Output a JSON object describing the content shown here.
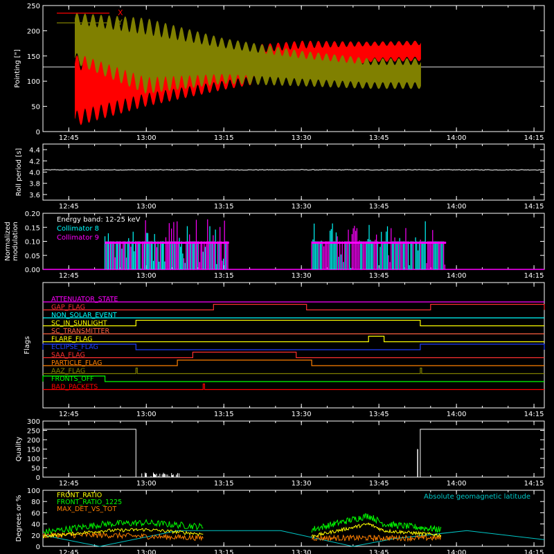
{
  "x_time_ticks": [
    "12:45",
    "13:00",
    "13:15",
    "13:30",
    "13:45",
    "14:00",
    "14:15"
  ],
  "colors": {
    "background": "#000000",
    "axes": "#ffffff",
    "x": "#ff0000",
    "y": "#808000",
    "collimator8": "#00ffff",
    "collimator9": "#ff00ff",
    "quality": "#ffffff",
    "front_ratio": "#ffff00",
    "front_ratio_1225": "#00ff00",
    "max_det_vs_tot": "#ff8000",
    "geomag": "#00c8c8"
  },
  "chart_data": [
    {
      "id": "pointing",
      "type": "line",
      "ylabel": "Pointing [\"]",
      "ylim": [
        0,
        250
      ],
      "yticks": [
        "0",
        "50",
        "100",
        "150",
        "200",
        "250"
      ],
      "legend": [
        {
          "name": "X",
          "color": "#ff0000"
        },
        {
          "name": "Y",
          "color": "#808000"
        }
      ],
      "legend_position": "top-left",
      "series": [
        {
          "name": "X",
          "color": "#ff0000",
          "center": 128,
          "envelope": [
            [
              12.77,
              80,
              70
            ],
            [
              13.0,
              110,
              60
            ],
            [
              13.25,
              125,
              42
            ],
            [
              13.5,
              145,
              35
            ],
            [
              13.72,
              158,
              20
            ],
            [
              13.88,
              160,
              20
            ]
          ]
        },
        {
          "name": "Y",
          "color": "#808000",
          "center": 128,
          "envelope": [
            [
              12.77,
              185,
              50
            ],
            [
              13.0,
              150,
              75
            ],
            [
              13.25,
              140,
              45
            ],
            [
              13.5,
              125,
              35
            ],
            [
              13.72,
              115,
              30
            ],
            [
              13.88,
              115,
              30
            ]
          ]
        }
      ],
      "baseline": 128,
      "active_range": [
        "12:46",
        "13:53"
      ]
    },
    {
      "id": "roll",
      "type": "line",
      "ylabel": "Roll period [s]",
      "ylim": [
        3.5,
        4.5
      ],
      "yticks": [
        "3.6",
        "3.8",
        "4.0",
        "4.2",
        "4.4"
      ],
      "value": 4.04
    },
    {
      "id": "modulation",
      "type": "bar",
      "ylabel": "Normalized modulation",
      "ylim": [
        0,
        0.2
      ],
      "yticks": [
        "0.00",
        "0.05",
        "0.10",
        "0.15",
        "0.20"
      ],
      "annotations": [
        "Energy band: 12-25 keV"
      ],
      "legend": [
        {
          "name": "Collimator 8",
          "color": "#00ffff"
        },
        {
          "name": "Collimator 9",
          "color": "#ff00ff"
        }
      ],
      "legend_position": "top-left",
      "active_ranges": [
        [
          "12:52",
          "13:16"
        ],
        [
          "13:32",
          "13:58"
        ]
      ],
      "typical_value": 0.1,
      "max_value": 0.2
    },
    {
      "id": "flags",
      "type": "line",
      "ylabel": "Flags",
      "flags": [
        {
          "name": "ATTENUATOR_STATE",
          "color": "#ff00ff",
          "high": []
        },
        {
          "name": "GAP_FLAG",
          "color": "#ff3030",
          "high": [
            [
              "13:13",
              "13:31"
            ],
            [
              "13:55",
              "14:17"
            ]
          ]
        },
        {
          "name": "NON_SOLAR_EVENT",
          "color": "#00ffff",
          "high": []
        },
        {
          "name": "SC_IN_SUNLIGHT",
          "color": "#ffff00",
          "high": [
            [
              "12:58",
              "13:53"
            ]
          ]
        },
        {
          "name": "SC_TRANSMITTER",
          "color": "#ff6040",
          "high": []
        },
        {
          "name": "FLARE_FLAG",
          "color": "#ffff00",
          "high": [
            [
              "13:43",
              "13:46"
            ]
          ]
        },
        {
          "name": "ECLIPSE_FLAG",
          "color": "#2040ff",
          "high": [
            [
              "12:40",
              "12:58"
            ],
            [
              "13:53",
              "14:17"
            ]
          ]
        },
        {
          "name": "SAA_FLAG",
          "color": "#ff3030",
          "high": [
            [
              "13:09",
              "13:29"
            ]
          ]
        },
        {
          "name": "PARTICLE_FLAG",
          "color": "#ff8000",
          "high": [
            [
              "13:06",
              "13:32"
            ]
          ]
        },
        {
          "name": "AAZ_FLAG",
          "color": "#808000",
          "high": [
            [
              "12:58",
              "12:58"
            ],
            [
              "13:53",
              "13:53"
            ]
          ]
        },
        {
          "name": "FRONTS_OFF",
          "color": "#00ff00",
          "high": [
            [
              "12:40",
              "12:52"
            ]
          ]
        },
        {
          "name": "BAD_PACKETS",
          "color": "#ff0000",
          "high": [
            [
              "13:11",
              "13:11"
            ]
          ]
        }
      ]
    },
    {
      "id": "quality",
      "type": "line",
      "ylabel": "Quality",
      "ylim": [
        0,
        300
      ],
      "yticks": [
        "0",
        "50",
        "100",
        "150",
        "200",
        "250",
        "300"
      ],
      "segments": [
        [
          "12:40",
          "12:58",
          256
        ],
        [
          "12:58",
          "13:53",
          0
        ],
        [
          "13:53",
          "14:17",
          256
        ]
      ]
    },
    {
      "id": "ratios",
      "type": "line",
      "ylabel": "Degrees or %",
      "ylim": [
        0,
        100
      ],
      "yticks": [
        "0",
        "20",
        "40",
        "60",
        "80",
        "100"
      ],
      "legend": [
        {
          "name": "FRONT_RATIO",
          "color": "#ffff00"
        },
        {
          "name": "FRONT_RATIO_1225",
          "color": "#00ff00"
        },
        {
          "name": "MAX_DET_VS_TOT",
          "color": "#ff8000"
        }
      ],
      "annotations": [
        "Absolute geomagnetic latitude"
      ],
      "geomag_latitude": [
        [
          "12:40",
          20
        ],
        [
          "12:51",
          0
        ],
        [
          "13:06",
          28
        ],
        [
          "13:26",
          28
        ],
        [
          "13:40",
          0
        ],
        [
          "13:48",
          14
        ],
        [
          "14:02",
          28
        ],
        [
          "14:17",
          12
        ]
      ],
      "active_ranges": [
        [
          "12:40",
          "13:11"
        ],
        [
          "13:32",
          "13:57"
        ]
      ],
      "front_ratio_1225_levels": [
        [
          "12:40",
          25
        ],
        [
          "12:52",
          40
        ],
        [
          "13:00",
          42
        ],
        [
          "13:11",
          35
        ],
        [
          "13:32",
          30
        ],
        [
          "13:43",
          55
        ],
        [
          "13:46",
          40
        ],
        [
          "13:57",
          30
        ]
      ],
      "front_ratio_levels": [
        [
          "12:40",
          18
        ],
        [
          "12:52",
          28
        ],
        [
          "13:00",
          30
        ],
        [
          "13:11",
          22
        ],
        [
          "13:32",
          18
        ],
        [
          "13:43",
          40
        ],
        [
          "13:46",
          28
        ],
        [
          "13:57",
          20
        ]
      ],
      "max_det_levels": [
        [
          "12:40",
          20
        ],
        [
          "12:52",
          20
        ],
        [
          "13:11",
          15
        ],
        [
          "13:32",
          15
        ],
        [
          "13:43",
          15
        ],
        [
          "13:57",
          15
        ]
      ]
    }
  ]
}
